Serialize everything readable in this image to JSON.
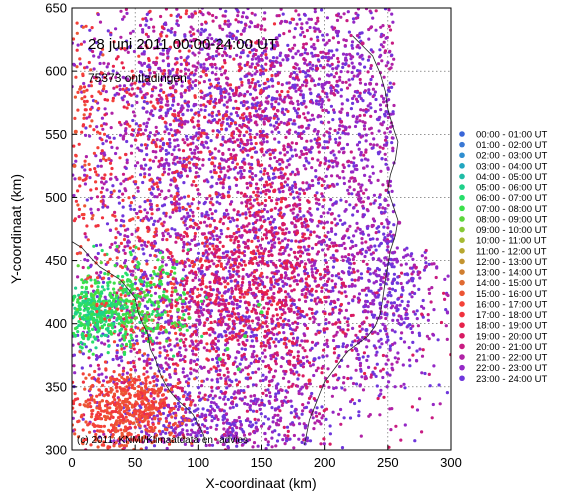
{
  "chart_data": {
    "type": "scatter",
    "title": "28 juni  2011     00:00-24:00 UT",
    "subtitle": "75373 ontladingen",
    "copyright": "(c) 2011: KNMI/Klimaatdata en -advies",
    "xlabel": "X-coordinaat (km)",
    "ylabel": "Y-coordinaat (km)",
    "xlim": [
      0,
      300
    ],
    "ylim": [
      300,
      650
    ],
    "xticks": [
      0,
      50,
      100,
      150,
      200,
      250,
      300
    ],
    "yticks": [
      300,
      350,
      400,
      450,
      500,
      550,
      600,
      650
    ],
    "grid": "dotted",
    "legend_position": "right",
    "series": [
      {
        "name": "00:00 - 01:00 UT",
        "color": "#3a66d8",
        "values": []
      },
      {
        "name": "01:00 - 02:00 UT",
        "color": "#3a78d4",
        "values": []
      },
      {
        "name": "02:00 - 03:00 UT",
        "color": "#2f8ed0",
        "values": []
      },
      {
        "name": "03:00 - 04:00 UT",
        "color": "#22a6c0",
        "values": []
      },
      {
        "name": "04:00 - 05:00 UT",
        "color": "#1fbca6",
        "values": []
      },
      {
        "name": "05:00 - 06:00 UT",
        "color": "#1fd08a",
        "values": [
          [
            0.5,
            405
          ],
          [
            8.5,
            404.5
          ],
          [
            22,
            408
          ],
          [
            3,
            408
          ]
        ]
      },
      {
        "name": "06:00 - 07:00 UT",
        "color": "#27de6a",
        "values": [
          [
            2,
            421.5
          ],
          [
            6,
            414
          ],
          [
            12,
            412
          ],
          [
            2.5,
            390.5
          ],
          [
            20,
            398
          ],
          [
            35,
            415
          ]
        ]
      },
      {
        "name": "07:00 - 08:00 UT",
        "color": "#3ae04a",
        "values": [
          [
            70,
            433.5
          ],
          [
            52,
            445
          ],
          [
            75,
            421
          ],
          [
            88,
            418
          ],
          [
            150,
            409
          ],
          [
            148,
            415
          ],
          [
            117,
            372
          ],
          [
            132,
            364
          ],
          [
            123,
            380
          ],
          [
            137,
            390
          ]
        ]
      },
      {
        "name": "08:00 - 09:00 UT",
        "color": "#5bd63c",
        "values": [
          [
            93,
            404.5
          ],
          [
            84,
            411
          ],
          [
            68,
            417
          ],
          [
            82,
            426
          ]
        ]
      },
      {
        "name": "09:00 - 10:00 UT",
        "color": "#86c936",
        "values": []
      },
      {
        "name": "10:00 - 11:00 UT",
        "color": "#a6ba32",
        "values": []
      },
      {
        "name": "11:00 - 12:00 UT",
        "color": "#b8a830",
        "values": []
      },
      {
        "name": "12:00 - 13:00 UT",
        "color": "#c49430",
        "values": []
      },
      {
        "name": "13:00 - 14:00 UT",
        "color": "#d07e30",
        "values": []
      },
      {
        "name": "14:00 - 15:00 UT",
        "color": "#e06a32",
        "values": []
      },
      {
        "name": "15:00 - 16:00 UT",
        "color": "#ec5534",
        "values": [
          [
            3,
            552
          ],
          [
            2,
            525
          ],
          [
            6,
            515
          ],
          [
            42,
            345
          ],
          [
            28,
            326
          ],
          [
            58,
            326
          ],
          [
            40,
            311
          ]
        ]
      },
      {
        "name": "16:00 - 17:00 UT",
        "color": "#f44238",
        "values": [
          [
            41,
            348
          ],
          [
            36,
            337
          ],
          [
            54,
            330
          ],
          [
            64,
            335
          ],
          [
            22,
            333
          ],
          [
            18,
            319
          ],
          [
            50,
            343
          ],
          [
            46,
            322
          ]
        ]
      },
      {
        "name": "17:00 - 18:00 UT",
        "color": "#f0323e",
        "values": [
          [
            47,
            395
          ],
          [
            78,
            456
          ],
          [
            106,
            468
          ],
          [
            124,
            501
          ],
          [
            122,
            565
          ],
          [
            111,
            527
          ],
          [
            188,
            355
          ]
        ]
      },
      {
        "name": "18:00 - 19:00 UT",
        "color": "#e6224a",
        "values": [
          [
            100,
            557
          ],
          [
            88,
            525
          ],
          [
            145,
            452
          ],
          [
            160,
            505
          ],
          [
            60,
            476
          ]
        ]
      },
      {
        "name": "19:00 - 20:00 UT",
        "color": "#d81a62",
        "values": [
          [
            178,
            595
          ],
          [
            194,
            602
          ],
          [
            130,
            468
          ],
          [
            110,
            396
          ],
          [
            172,
            370
          ]
        ]
      },
      {
        "name": "20:00 - 21:00 UT",
        "color": "#c81c82",
        "values": [
          [
            213,
            560
          ],
          [
            230,
            622
          ],
          [
            182,
            556
          ],
          [
            168,
            538
          ]
        ]
      },
      {
        "name": "21:00 - 22:00 UT",
        "color": "#b022a6",
        "values": [
          [
            198,
            465
          ],
          [
            259,
            480
          ],
          [
            232,
            410
          ],
          [
            210,
            527
          ],
          [
            236,
            590
          ]
        ]
      },
      {
        "name": "22:00 - 23:00 UT",
        "color": "#9428c6",
        "values": [
          [
            192,
            618
          ],
          [
            223,
            603
          ],
          [
            162,
            626
          ],
          [
            136,
            632
          ],
          [
            76,
            616
          ],
          [
            248,
            498
          ]
        ]
      },
      {
        "name": "23:00 - 24:00 UT",
        "color": "#6e36dc",
        "values": [
          [
            244,
            416
          ],
          [
            255,
            435
          ],
          [
            233,
            395
          ],
          [
            192,
            372
          ]
        ]
      }
    ]
  }
}
